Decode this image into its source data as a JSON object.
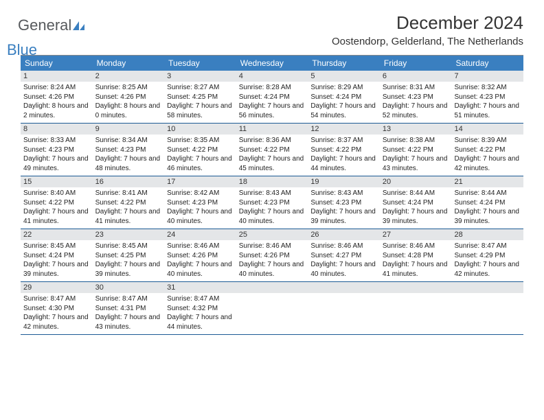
{
  "logo": {
    "word1": "General",
    "word2": "Blue"
  },
  "title": {
    "month": "December 2024",
    "location": "Oostendorp, Gelderland, The Netherlands"
  },
  "colors": {
    "header_bar": "#3a7fc0",
    "day_num_bg": "#e4e6e8",
    "week_border": "#1b5a94"
  },
  "day_names": [
    "Sunday",
    "Monday",
    "Tuesday",
    "Wednesday",
    "Thursday",
    "Friday",
    "Saturday"
  ],
  "weeks": [
    [
      {
        "n": "1",
        "sr": "8:24 AM",
        "ss": "4:26 PM",
        "dl": "8 hours and 2 minutes."
      },
      {
        "n": "2",
        "sr": "8:25 AM",
        "ss": "4:26 PM",
        "dl": "8 hours and 0 minutes."
      },
      {
        "n": "3",
        "sr": "8:27 AM",
        "ss": "4:25 PM",
        "dl": "7 hours and 58 minutes."
      },
      {
        "n": "4",
        "sr": "8:28 AM",
        "ss": "4:24 PM",
        "dl": "7 hours and 56 minutes."
      },
      {
        "n": "5",
        "sr": "8:29 AM",
        "ss": "4:24 PM",
        "dl": "7 hours and 54 minutes."
      },
      {
        "n": "6",
        "sr": "8:31 AM",
        "ss": "4:23 PM",
        "dl": "7 hours and 52 minutes."
      },
      {
        "n": "7",
        "sr": "8:32 AM",
        "ss": "4:23 PM",
        "dl": "7 hours and 51 minutes."
      }
    ],
    [
      {
        "n": "8",
        "sr": "8:33 AM",
        "ss": "4:23 PM",
        "dl": "7 hours and 49 minutes."
      },
      {
        "n": "9",
        "sr": "8:34 AM",
        "ss": "4:23 PM",
        "dl": "7 hours and 48 minutes."
      },
      {
        "n": "10",
        "sr": "8:35 AM",
        "ss": "4:22 PM",
        "dl": "7 hours and 46 minutes."
      },
      {
        "n": "11",
        "sr": "8:36 AM",
        "ss": "4:22 PM",
        "dl": "7 hours and 45 minutes."
      },
      {
        "n": "12",
        "sr": "8:37 AM",
        "ss": "4:22 PM",
        "dl": "7 hours and 44 minutes."
      },
      {
        "n": "13",
        "sr": "8:38 AM",
        "ss": "4:22 PM",
        "dl": "7 hours and 43 minutes."
      },
      {
        "n": "14",
        "sr": "8:39 AM",
        "ss": "4:22 PM",
        "dl": "7 hours and 42 minutes."
      }
    ],
    [
      {
        "n": "15",
        "sr": "8:40 AM",
        "ss": "4:22 PM",
        "dl": "7 hours and 41 minutes."
      },
      {
        "n": "16",
        "sr": "8:41 AM",
        "ss": "4:22 PM",
        "dl": "7 hours and 41 minutes."
      },
      {
        "n": "17",
        "sr": "8:42 AM",
        "ss": "4:23 PM",
        "dl": "7 hours and 40 minutes."
      },
      {
        "n": "18",
        "sr": "8:43 AM",
        "ss": "4:23 PM",
        "dl": "7 hours and 40 minutes."
      },
      {
        "n": "19",
        "sr": "8:43 AM",
        "ss": "4:23 PM",
        "dl": "7 hours and 39 minutes."
      },
      {
        "n": "20",
        "sr": "8:44 AM",
        "ss": "4:24 PM",
        "dl": "7 hours and 39 minutes."
      },
      {
        "n": "21",
        "sr": "8:44 AM",
        "ss": "4:24 PM",
        "dl": "7 hours and 39 minutes."
      }
    ],
    [
      {
        "n": "22",
        "sr": "8:45 AM",
        "ss": "4:24 PM",
        "dl": "7 hours and 39 minutes."
      },
      {
        "n": "23",
        "sr": "8:45 AM",
        "ss": "4:25 PM",
        "dl": "7 hours and 39 minutes."
      },
      {
        "n": "24",
        "sr": "8:46 AM",
        "ss": "4:26 PM",
        "dl": "7 hours and 40 minutes."
      },
      {
        "n": "25",
        "sr": "8:46 AM",
        "ss": "4:26 PM",
        "dl": "7 hours and 40 minutes."
      },
      {
        "n": "26",
        "sr": "8:46 AM",
        "ss": "4:27 PM",
        "dl": "7 hours and 40 minutes."
      },
      {
        "n": "27",
        "sr": "8:46 AM",
        "ss": "4:28 PM",
        "dl": "7 hours and 41 minutes."
      },
      {
        "n": "28",
        "sr": "8:47 AM",
        "ss": "4:29 PM",
        "dl": "7 hours and 42 minutes."
      }
    ],
    [
      {
        "n": "29",
        "sr": "8:47 AM",
        "ss": "4:30 PM",
        "dl": "7 hours and 42 minutes."
      },
      {
        "n": "30",
        "sr": "8:47 AM",
        "ss": "4:31 PM",
        "dl": "7 hours and 43 minutes."
      },
      {
        "n": "31",
        "sr": "8:47 AM",
        "ss": "4:32 PM",
        "dl": "7 hours and 44 minutes."
      },
      {
        "empty": true
      },
      {
        "empty": true
      },
      {
        "empty": true
      },
      {
        "empty": true
      }
    ]
  ],
  "labels": {
    "sunrise": "Sunrise:",
    "sunset": "Sunset:",
    "daylight": "Daylight:"
  }
}
